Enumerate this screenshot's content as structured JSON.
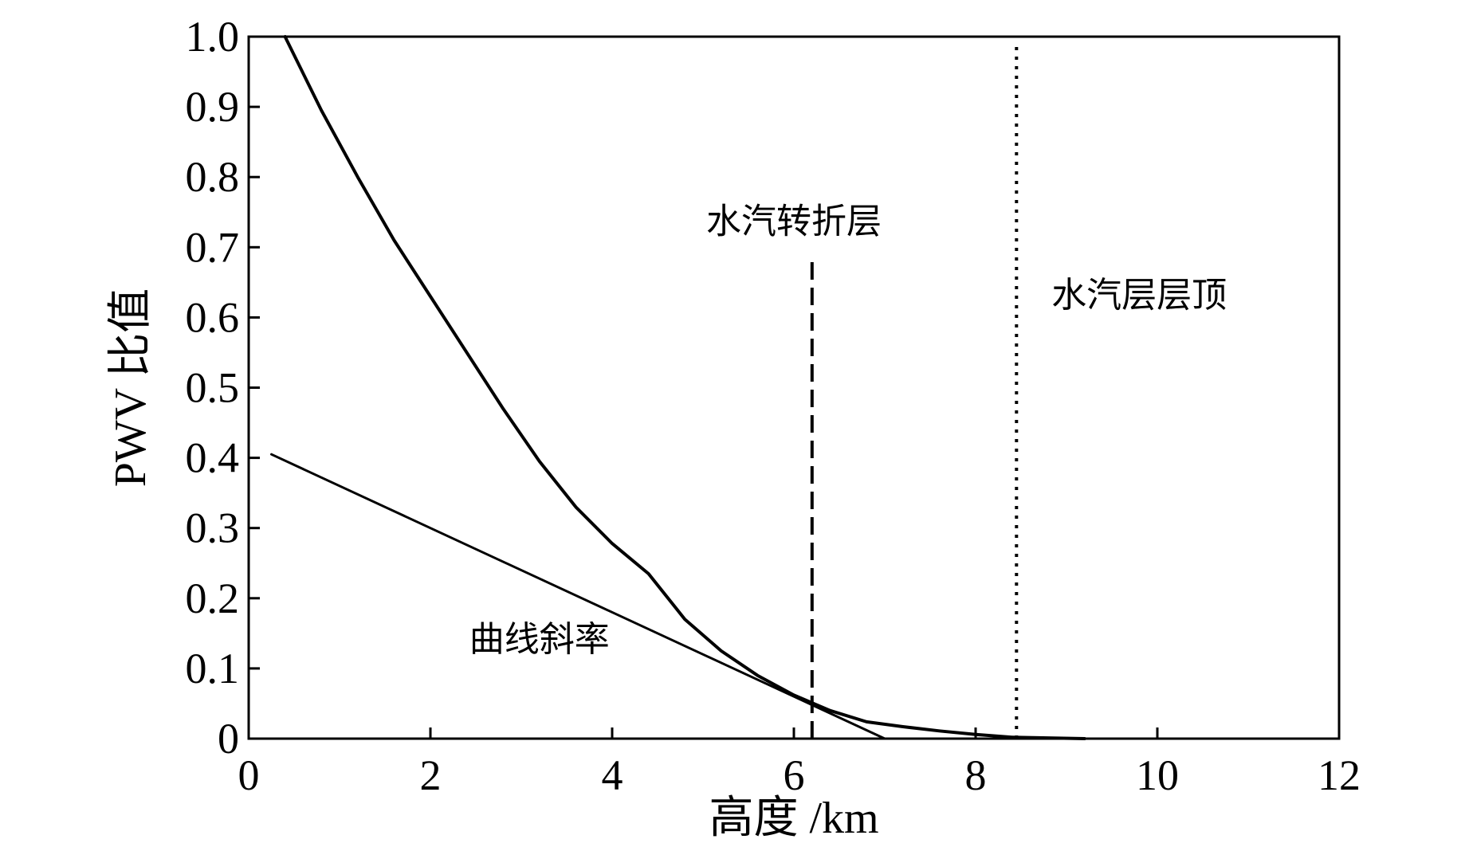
{
  "chart_data": {
    "type": "line",
    "xlabel": "高度 /km",
    "ylabel": "PWV 比值",
    "xlim": [
      0,
      12
    ],
    "ylim": [
      0,
      1.0
    ],
    "x_ticks": [
      0,
      2,
      4,
      6,
      8,
      10,
      12
    ],
    "x_tick_labels": [
      "0",
      "2",
      "4",
      "6",
      "8",
      "10",
      "12"
    ],
    "y_ticks": [
      0,
      0.1,
      0.2,
      0.3,
      0.4,
      0.5,
      0.6,
      0.7,
      0.8,
      0.9,
      1.0
    ],
    "y_tick_labels": [
      "0",
      "0.1",
      "0.2",
      "0.3",
      "0.4",
      "0.5",
      "0.6",
      "0.7",
      "0.8",
      "0.9",
      "1.0"
    ],
    "grid": false,
    "series": [
      {
        "style": "solid-thick",
        "x": [
          0.4,
          0.8,
          1.2,
          1.6,
          2.0,
          2.4,
          2.8,
          3.2,
          3.6,
          4.0,
          4.4,
          4.8,
          5.2,
          5.6,
          6.0,
          6.4,
          6.8,
          7.2,
          7.6,
          8.0,
          8.4,
          8.8,
          9.2
        ],
        "y": [
          1.0,
          0.895,
          0.8,
          0.71,
          0.63,
          0.55,
          0.47,
          0.395,
          0.33,
          0.278,
          0.235,
          0.17,
          0.125,
          0.09,
          0.062,
          0.04,
          0.024,
          0.017,
          0.011,
          0.006,
          0.002,
          0.001,
          0.0
        ]
      },
      {
        "style": "solid-thin",
        "x": [
          0.25,
          7.0
        ],
        "y": [
          0.405,
          0.0
        ]
      }
    ],
    "vlines": [
      {
        "x": 6.2,
        "ymin": 0,
        "ymax": 0.685,
        "style": "dashed"
      },
      {
        "x": 8.45,
        "ymin": 0,
        "ymax": 0.99,
        "style": "dotted"
      }
    ],
    "annotations": [
      {
        "id": "turning-layer",
        "text": "水汽转折层",
        "x": 6.0,
        "y": 0.72
      },
      {
        "id": "layer-top",
        "text": "水汽层层顶",
        "x": 9.8,
        "y": 0.615
      },
      {
        "id": "curve-slope",
        "text": "曲线斜率",
        "x": 3.2,
        "y": 0.125
      }
    ]
  }
}
